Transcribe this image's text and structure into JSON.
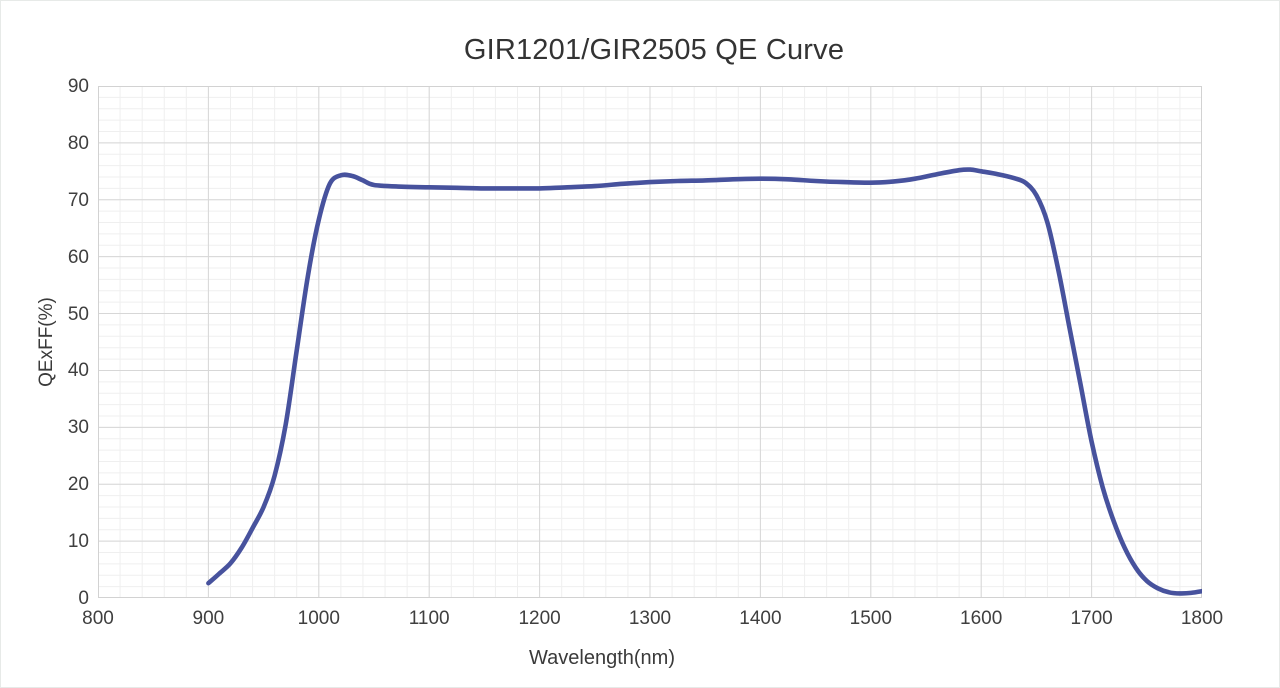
{
  "page": {
    "background": "#ffffff",
    "border_color": "#e7eae8"
  },
  "style": {
    "curve_color": "#47529d",
    "grid_major_color": "#d7d7d7",
    "grid_minor_color": "#efefef",
    "plot_border_color": "#d2d2d2",
    "tick_text_color": "#3f3f3f",
    "title_color": "#333333"
  },
  "chart_data": {
    "type": "line",
    "title": "GIR1201/GIR2505 QE Curve",
    "xlabel": "Wavelength(nm)",
    "ylabel": "QExFF(%)",
    "xlim": [
      800,
      1800
    ],
    "ylim": [
      0,
      90
    ],
    "x_major_ticks": [
      800,
      900,
      1000,
      1100,
      1200,
      1300,
      1400,
      1500,
      1600,
      1700,
      1800
    ],
    "y_major_ticks": [
      0,
      10,
      20,
      30,
      40,
      50,
      60,
      70,
      80,
      90
    ],
    "x_minor_step": 20,
    "y_minor_step": 2,
    "grid": "major-and-minor",
    "legend": false,
    "series": [
      {
        "name": "QExFF",
        "color": "#47529d",
        "points": [
          [
            900,
            2.6
          ],
          [
            910,
            4.3
          ],
          [
            920,
            6.1
          ],
          [
            930,
            8.8
          ],
          [
            940,
            12.3
          ],
          [
            950,
            16.0
          ],
          [
            960,
            21.5
          ],
          [
            970,
            30.5
          ],
          [
            980,
            43.5
          ],
          [
            990,
            56.5
          ],
          [
            1000,
            66.5
          ],
          [
            1010,
            72.8
          ],
          [
            1020,
            74.3
          ],
          [
            1030,
            74.2
          ],
          [
            1040,
            73.4
          ],
          [
            1050,
            72.6
          ],
          [
            1075,
            72.3
          ],
          [
            1100,
            72.2
          ],
          [
            1125,
            72.1
          ],
          [
            1150,
            72.0
          ],
          [
            1175,
            72.0
          ],
          [
            1200,
            72.0
          ],
          [
            1225,
            72.2
          ],
          [
            1250,
            72.4
          ],
          [
            1275,
            72.8
          ],
          [
            1300,
            73.1
          ],
          [
            1325,
            73.3
          ],
          [
            1350,
            73.4
          ],
          [
            1375,
            73.6
          ],
          [
            1400,
            73.7
          ],
          [
            1425,
            73.6
          ],
          [
            1450,
            73.3
          ],
          [
            1475,
            73.1
          ],
          [
            1500,
            73.0
          ],
          [
            1520,
            73.2
          ],
          [
            1540,
            73.7
          ],
          [
            1560,
            74.5
          ],
          [
            1580,
            75.2
          ],
          [
            1590,
            75.3
          ],
          [
            1600,
            75.0
          ],
          [
            1615,
            74.5
          ],
          [
            1630,
            73.8
          ],
          [
            1640,
            73.0
          ],
          [
            1650,
            70.8
          ],
          [
            1660,
            66.0
          ],
          [
            1670,
            57.5
          ],
          [
            1680,
            47.5
          ],
          [
            1690,
            37.5
          ],
          [
            1700,
            27.5
          ],
          [
            1710,
            19.5
          ],
          [
            1720,
            13.5
          ],
          [
            1730,
            8.8
          ],
          [
            1740,
            5.3
          ],
          [
            1750,
            3.0
          ],
          [
            1760,
            1.7
          ],
          [
            1770,
            1.0
          ],
          [
            1780,
            0.8
          ],
          [
            1790,
            0.9
          ],
          [
            1800,
            1.2
          ]
        ]
      }
    ]
  }
}
